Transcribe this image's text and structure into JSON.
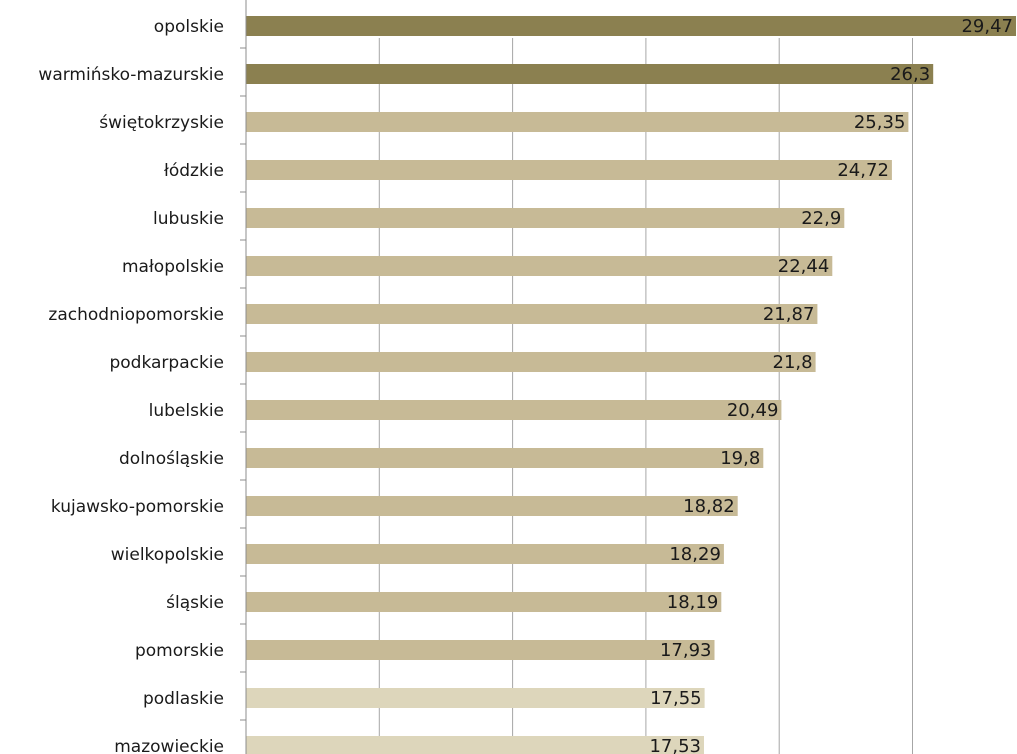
{
  "chart_data": {
    "type": "bar",
    "orientation": "horizontal",
    "categories": [
      "opolskie",
      "warmińsko-mazurskie",
      "świętokrzyskie",
      "łódzkie",
      "lubuskie",
      "małopolskie",
      "zachodniopomorskie",
      "podkarpackie",
      "lubelskie",
      "dolnośląskie",
      "kujawsko-pomorskie",
      "wielkopolskie",
      "śląskie",
      "pomorskie",
      "podlaskie",
      "mazowieckie"
    ],
    "values": [
      29.47,
      26.3,
      25.35,
      24.72,
      22.9,
      22.44,
      21.87,
      21.8,
      20.49,
      19.8,
      18.82,
      18.29,
      18.19,
      17.93,
      17.55,
      17.53
    ],
    "value_labels": [
      "29,47",
      "26,3",
      "25,35",
      "24,72",
      "22,9",
      "22,44",
      "21,87",
      "21,8",
      "20,49",
      "19,8",
      "18,82",
      "18,29",
      "18,19",
      "17,93",
      "17,55",
      "17,53"
    ],
    "bar_tiers": [
      "dark",
      "dark",
      "mid",
      "mid",
      "mid",
      "mid",
      "mid",
      "mid",
      "mid",
      "mid",
      "mid",
      "mid",
      "mid",
      "mid",
      "light",
      "light"
    ],
    "colors": {
      "dark": "#8b8050",
      "mid": "#c7ba96",
      "light": "#ddd6bb",
      "grid": "#a6a6a6"
    },
    "xlim": [
      0,
      29.47
    ],
    "grid": true,
    "title": "",
    "xlabel": "",
    "ylabel": ""
  }
}
